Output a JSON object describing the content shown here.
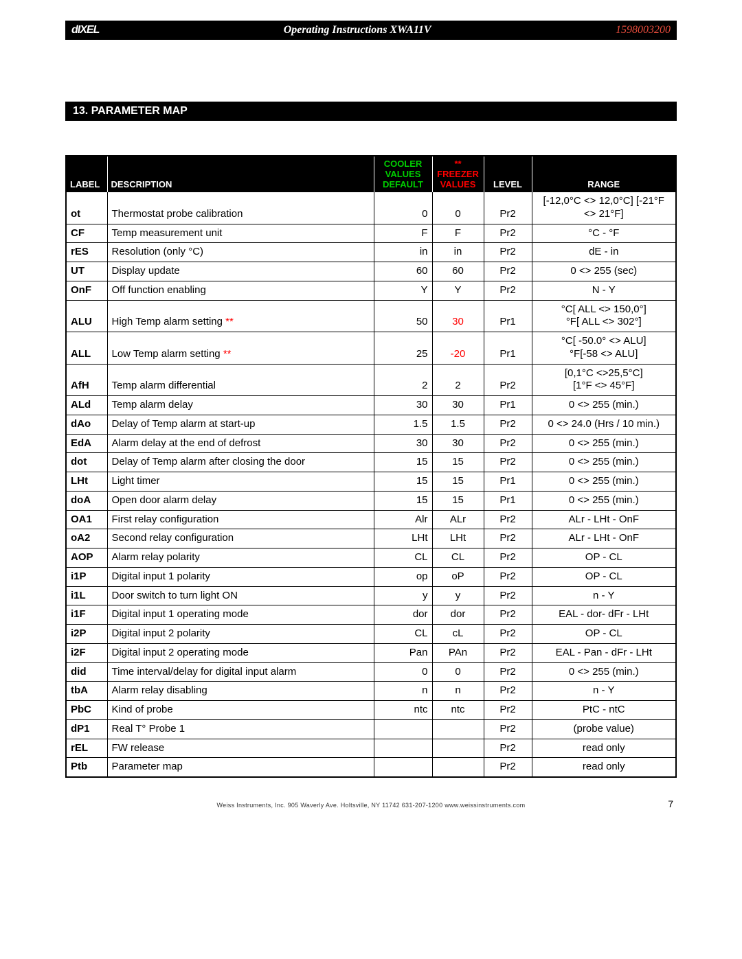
{
  "header": {
    "brand": "dIXEL",
    "title": "Operating Instructions XWA11V",
    "doc_number": "1598003200"
  },
  "section": {
    "title": "13.  PARAMETER MAP"
  },
  "table": {
    "headers": {
      "label": "LABEL",
      "description": "DESCRIPTION",
      "cooler_line1": "COOLER",
      "cooler_line2": "VALUES",
      "cooler_line3": "DEFAULT",
      "freezer_line1": "**",
      "freezer_line2": "FREEZER",
      "freezer_line3": "VALUES",
      "level": "LEVEL",
      "range": "RANGE"
    },
    "rows": [
      {
        "label": "ot",
        "desc": "Thermostat probe calibration",
        "cooler": "0",
        "freezer": "0",
        "freezer_red": false,
        "level": "Pr2",
        "range": "[-12,0°C <> 12,0°C]  [-21°F <> 21°F]",
        "desc_stars": false
      },
      {
        "label": "CF",
        "desc": "Temp measurement unit",
        "cooler": "F",
        "freezer": "F",
        "freezer_red": false,
        "level": "Pr2",
        "range": "°C - °F",
        "desc_stars": false
      },
      {
        "label": "rES",
        "desc": "Resolution (only °C)",
        "cooler": "in",
        "freezer": "in",
        "freezer_red": false,
        "level": "Pr2",
        "range": "dE - in",
        "desc_stars": false
      },
      {
        "label": "UT",
        "desc": "Display update",
        "cooler": "60",
        "freezer": "60",
        "freezer_red": false,
        "level": "Pr2",
        "range": "0 <> 255 (sec)",
        "desc_stars": false
      },
      {
        "label": "OnF",
        "desc": "Off function enabling",
        "cooler": "Y",
        "freezer": "Y",
        "freezer_red": false,
        "level": "Pr2",
        "range": "N  - Y",
        "desc_stars": false
      },
      {
        "label": "ALU",
        "desc": "High Temp alarm setting ",
        "cooler": "50",
        "freezer": "30",
        "freezer_red": true,
        "level": "Pr1",
        "range": "°C[ ALL <> 150,0°]\n°F[ ALL <> 302°]",
        "desc_stars": true
      },
      {
        "label": "ALL",
        "desc": "Low Temp alarm setting ",
        "cooler": "25",
        "freezer": "-20",
        "freezer_red": true,
        "level": "Pr1",
        "range": "°C[ -50.0° <> ALU]\n°F[-58 <> ALU]",
        "desc_stars": true
      },
      {
        "label": "AfH",
        "desc": "Temp alarm differential",
        "cooler": "2",
        "freezer": "2",
        "freezer_red": false,
        "level": "Pr2",
        "range": "[0,1°C <>25,5°C]\n[1°F <> 45°F]",
        "desc_stars": false
      },
      {
        "label": "ALd",
        "desc": "Temp alarm delay",
        "cooler": "30",
        "freezer": "30",
        "freezer_red": false,
        "level": "Pr1",
        "range": "0 <> 255 (min.)",
        "desc_stars": false
      },
      {
        "label": "dAo",
        "desc": "Delay of Temp alarm at start-up",
        "cooler": "1.5",
        "freezer": "1.5",
        "freezer_red": false,
        "level": "Pr2",
        "range": "0 <> 24.0 (Hrs / 10 min.)",
        "desc_stars": false
      },
      {
        "label": "EdA",
        "desc": "Alarm delay at the end of defrost",
        "cooler": "30",
        "freezer": "30",
        "freezer_red": false,
        "level": "Pr2",
        "range": "0 <> 255 (min.)",
        "desc_stars": false
      },
      {
        "label": "dot",
        "desc": "Delay of Temp alarm after closing the door",
        "cooler": "15",
        "freezer": "15",
        "freezer_red": false,
        "level": "Pr2",
        "range": "0 <> 255 (min.)",
        "desc_stars": false
      },
      {
        "label": "LHt",
        "desc": "Light timer",
        "cooler": "15",
        "freezer": "15",
        "freezer_red": false,
        "level": "Pr1",
        "range": "0 <> 255 (min.)",
        "desc_stars": false
      },
      {
        "label": "doA",
        "desc": "Open door alarm delay",
        "cooler": "15",
        "freezer": "15",
        "freezer_red": false,
        "level": "Pr1",
        "range": "0 <> 255 (min.)",
        "desc_stars": false
      },
      {
        "label": "OA1",
        "desc": "First relay configuration",
        "cooler": "Alr",
        "freezer": "ALr",
        "freezer_red": false,
        "level": "Pr2",
        "range": "ALr - LHt - OnF",
        "desc_stars": false
      },
      {
        "label": "oA2",
        "desc": "Second relay configuration",
        "cooler": "LHt",
        "freezer": "LHt",
        "freezer_red": false,
        "level": "Pr2",
        "range": "ALr - LHt - OnF",
        "desc_stars": false
      },
      {
        "label": "AOP",
        "desc": "Alarm relay polarity",
        "cooler": "CL",
        "freezer": "CL",
        "freezer_red": false,
        "level": "Pr2",
        "range": "OP - CL",
        "desc_stars": false
      },
      {
        "label": "i1P",
        "desc": "Digital input 1 polarity",
        "cooler": "op",
        "freezer": "oP",
        "freezer_red": false,
        "level": "Pr2",
        "range": "OP - CL",
        "desc_stars": false
      },
      {
        "label": "i1L",
        "desc": "Door switch to turn light ON",
        "cooler": "y",
        "freezer": "y",
        "freezer_red": false,
        "level": "Pr2",
        "range": "n - Y",
        "desc_stars": false
      },
      {
        "label": "i1F",
        "desc": "Digital input 1 operating mode",
        "cooler": "dor",
        "freezer": "dor",
        "freezer_red": false,
        "level": "Pr2",
        "range": "EAL -  dor- dFr - LHt",
        "desc_stars": false
      },
      {
        "label": "i2P",
        "desc": "Digital input 2 polarity",
        "cooler": "CL",
        "freezer": "cL",
        "freezer_red": false,
        "level": "Pr2",
        "range": "OP - CL",
        "desc_stars": false
      },
      {
        "label": "i2F",
        "desc": "Digital input 2 operating mode",
        "cooler": "Pan",
        "freezer": "PAn",
        "freezer_red": false,
        "level": "Pr2",
        "range": "EAL -  Pan - dFr - LHt",
        "desc_stars": false
      },
      {
        "label": "did",
        "desc": "Time interval/delay for digital input alarm",
        "cooler": "0",
        "freezer": "0",
        "freezer_red": false,
        "level": "Pr2",
        "range": "0 <> 255 (min.)",
        "desc_stars": false
      },
      {
        "label": "tbA",
        "desc": "Alarm relay disabling",
        "cooler": "n",
        "freezer": "n",
        "freezer_red": false,
        "level": "Pr2",
        "range": "n - Y",
        "desc_stars": false
      },
      {
        "label": "PbC",
        "desc": "Kind of probe",
        "cooler": "ntc",
        "freezer": "ntc",
        "freezer_red": false,
        "level": "Pr2",
        "range": "PtC - ntC",
        "desc_stars": false
      },
      {
        "label": "dP1",
        "desc": "Real T° Probe 1",
        "cooler": "",
        "freezer": "",
        "freezer_red": false,
        "level": "Pr2",
        "range": "(probe value)",
        "desc_stars": false
      },
      {
        "label": "rEL",
        "desc": "FW release",
        "cooler": "",
        "freezer": "",
        "freezer_red": false,
        "level": "Pr2",
        "range": "read only",
        "desc_stars": false
      },
      {
        "label": "Ptb",
        "desc": "Parameter map",
        "cooler": "",
        "freezer": "",
        "freezer_red": false,
        "level": "Pr2",
        "range": "read only",
        "desc_stars": false
      }
    ]
  },
  "footer": {
    "text": "Weiss Instruments, Inc. 905 Waverly Ave. Holtsville, NY 11742  631-207-1200 www.weissinstruments.com",
    "page": "7"
  }
}
